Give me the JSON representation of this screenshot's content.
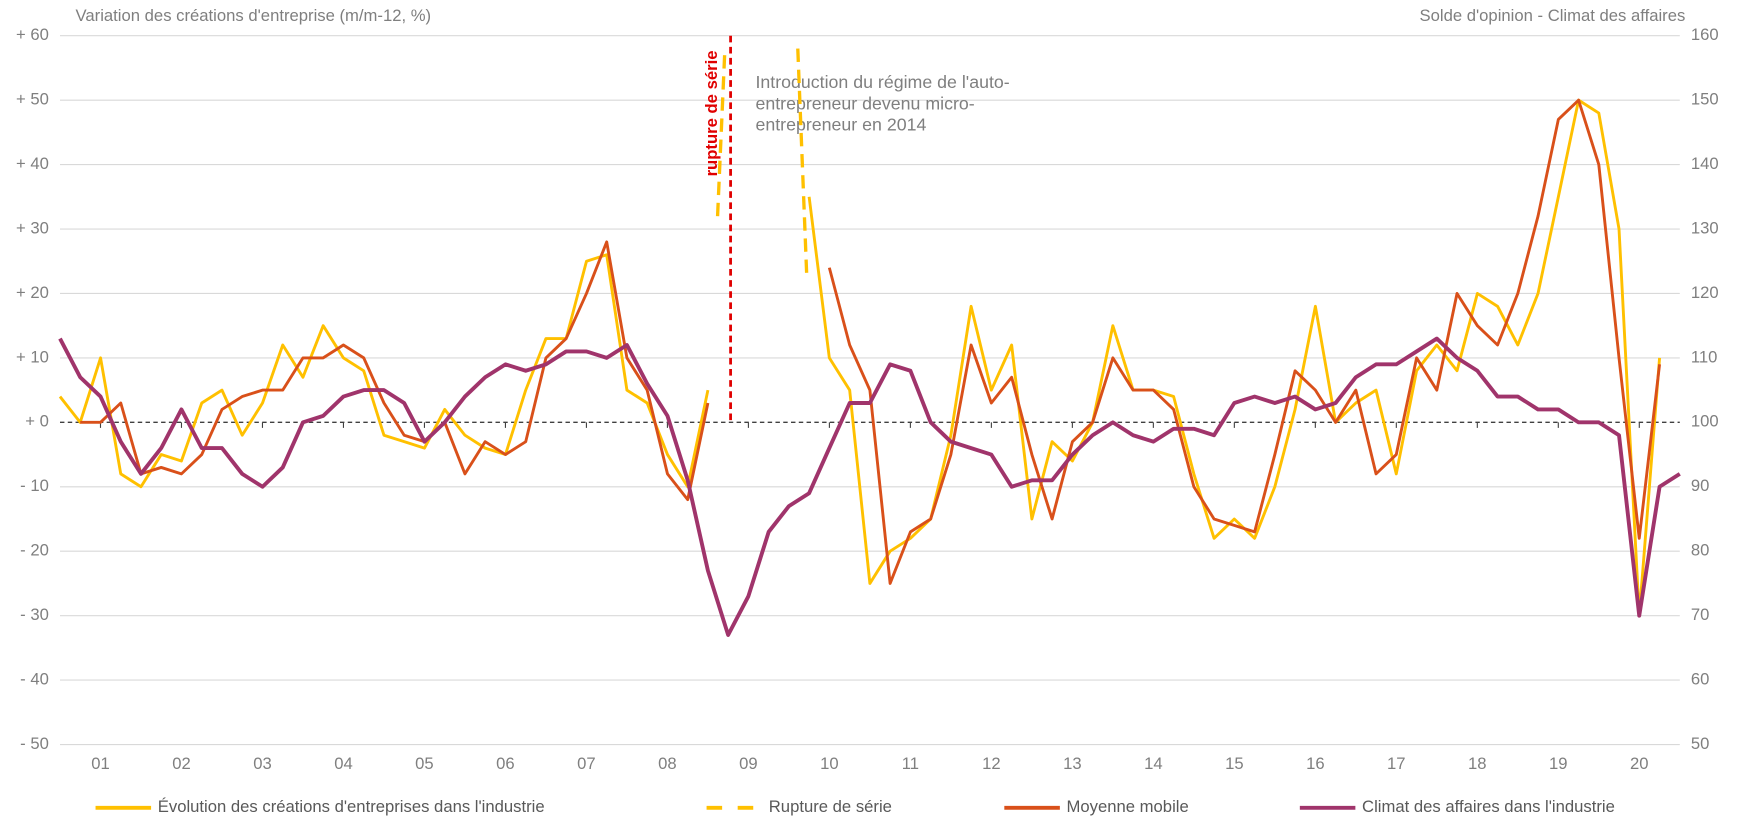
{
  "chart_data": {
    "type": "line",
    "title": "Variation des créations d'entreprise (m/m-12, %)",
    "y2_title": "Solde d'opinion - Climat des affaires",
    "x": [
      1,
      1.25,
      1.5,
      1.75,
      2,
      2.25,
      2.5,
      2.75,
      3,
      3.25,
      3.5,
      3.75,
      4,
      4.25,
      4.5,
      4.75,
      5,
      5.25,
      5.5,
      5.75,
      6,
      6.25,
      6.5,
      6.75,
      7,
      7.25,
      7.5,
      7.75,
      8,
      8.25,
      8.5,
      8.75,
      9,
      9.25,
      9.5,
      9.75,
      10,
      10.25,
      10.5,
      10.75,
      11,
      11.25,
      11.5,
      11.75,
      12,
      12.25,
      12.5,
      12.75,
      13,
      13.25,
      13.5,
      13.75,
      14,
      14.25,
      14.5,
      14.75,
      15,
      15.25,
      15.5,
      15.75,
      16,
      16.25,
      16.5,
      16.75,
      17,
      17.25,
      17.5,
      17.75,
      18,
      18.25,
      18.5,
      18.75,
      19,
      19.25,
      19.5,
      19.75,
      20,
      20.25,
      20.5,
      20.75,
      21
    ],
    "xlim": [
      1,
      21
    ],
    "xticks": [
      {
        "value": 1.5,
        "label": "01"
      },
      {
        "value": 2.5,
        "label": "02"
      },
      {
        "value": 3.5,
        "label": "03"
      },
      {
        "value": 4.5,
        "label": "04"
      },
      {
        "value": 5.5,
        "label": "05"
      },
      {
        "value": 6.5,
        "label": "06"
      },
      {
        "value": 7.5,
        "label": "07"
      },
      {
        "value": 8.5,
        "label": "08"
      },
      {
        "value": 9.5,
        "label": "09"
      },
      {
        "value": 10.5,
        "label": "10"
      },
      {
        "value": 11.5,
        "label": "11"
      },
      {
        "value": 12.5,
        "label": "12"
      },
      {
        "value": 13.5,
        "label": "13"
      },
      {
        "value": 14.5,
        "label": "14"
      },
      {
        "value": 15.5,
        "label": "15"
      },
      {
        "value": 16.5,
        "label": "16"
      },
      {
        "value": 17.5,
        "label": "17"
      },
      {
        "value": 18.5,
        "label": "18"
      },
      {
        "value": 19.5,
        "label": "19"
      },
      {
        "value": 20.5,
        "label": "20"
      }
    ],
    "ylim": [
      -50,
      60
    ],
    "yticks": [
      {
        "value": 60,
        "label": "+ 60"
      },
      {
        "value": 50,
        "label": "+ 50"
      },
      {
        "value": 40,
        "label": "+ 40"
      },
      {
        "value": 30,
        "label": "+ 30"
      },
      {
        "value": 20,
        "label": "+ 20"
      },
      {
        "value": 10,
        "label": "+ 10"
      },
      {
        "value": 0,
        "label": "+ 0"
      },
      {
        "value": -10,
        "label": "- 10"
      },
      {
        "value": -20,
        "label": "- 20"
      },
      {
        "value": -30,
        "label": "- 30"
      },
      {
        "value": -40,
        "label": "- 40"
      },
      {
        "value": -50,
        "label": "- 50"
      }
    ],
    "y2lim": [
      50,
      160
    ],
    "y2ticks": [
      160,
      150,
      140,
      130,
      120,
      110,
      100,
      90,
      80,
      70,
      60,
      50
    ],
    "grid": true,
    "series": [
      {
        "name": "Évolution des créations d'entreprises dans l'industrie",
        "color": "#FFC000",
        "values": [
          4,
          0,
          10,
          -8,
          -10,
          -5,
          -6,
          3,
          5,
          -2,
          3,
          12,
          7,
          15,
          10,
          8,
          -2,
          -3,
          -4,
          2,
          -2,
          -4,
          -5,
          5,
          13,
          13,
          25,
          26,
          5,
          3,
          -5,
          -10,
          5,
          null,
          null,
          null,
          null,
          35,
          10,
          5,
          -25,
          -20,
          -18,
          -15,
          -2,
          18,
          5,
          12,
          -15,
          -3,
          -6,
          0,
          15,
          5,
          5,
          4,
          -8,
          -18,
          -15,
          -18,
          -10,
          2,
          18,
          0,
          3,
          5,
          -8,
          8,
          12,
          8,
          20,
          18,
          12,
          20,
          35,
          50,
          48,
          30,
          -30,
          10,
          null
        ]
      },
      {
        "name": "Rupture de série",
        "color": "#FFC000",
        "dashed": true,
        "x": [
          9.12,
          9.21,
          9.24,
          10.11,
          10.22
        ],
        "values": [
          32,
          58,
          null,
          58,
          23
        ]
      },
      {
        "name": "Moyenne mobile",
        "color": "#D9501A",
        "values": [
          null,
          0,
          0,
          3,
          -8,
          -7,
          -8,
          -5,
          2,
          4,
          5,
          5,
          10,
          10,
          12,
          10,
          3,
          -2,
          -3,
          0,
          -8,
          -3,
          -5,
          -3,
          10,
          13,
          20,
          28,
          10,
          5,
          -8,
          -12,
          3,
          null,
          null,
          null,
          null,
          null,
          24,
          12,
          5,
          -25,
          -17,
          -15,
          -5,
          12,
          3,
          7,
          -5,
          -15,
          -3,
          0,
          10,
          5,
          5,
          2,
          -10,
          -15,
          -16,
          -17,
          -5,
          8,
          5,
          0,
          5,
          -8,
          -5,
          10,
          5,
          20,
          15,
          12,
          20,
          32,
          47,
          50,
          40,
          10,
          -18,
          9,
          null
        ]
      },
      {
        "name": "Climat des affaires dans l'industrie",
        "color": "#A0346B",
        "axis": "y2",
        "values": [
          113,
          107,
          104,
          97,
          92,
          96,
          102,
          96,
          96,
          92,
          90,
          93,
          100,
          101,
          104,
          105,
          105,
          103,
          97,
          100,
          104,
          107,
          109,
          108,
          109,
          111,
          111,
          110,
          112,
          106,
          101,
          91,
          77,
          67,
          73,
          83,
          87,
          89,
          96,
          103,
          103,
          109,
          108,
          100,
          97,
          96,
          95,
          90,
          91,
          91,
          95,
          98,
          100,
          98,
          97,
          99,
          99,
          98,
          103,
          104,
          103,
          104,
          102,
          103,
          107,
          109,
          109,
          111,
          113,
          110,
          108,
          104,
          104,
          102,
          102,
          100,
          100,
          98,
          70,
          90,
          92
        ]
      }
    ],
    "annotations": [
      {
        "text": "rupture de série",
        "x": 9.28,
        "color": "#E00000"
      },
      {
        "text": [
          "Introduction du régime de l'auto-",
          "entrepreneur devenu micro-",
          "entrepreneur en 2014"
        ]
      }
    ]
  }
}
